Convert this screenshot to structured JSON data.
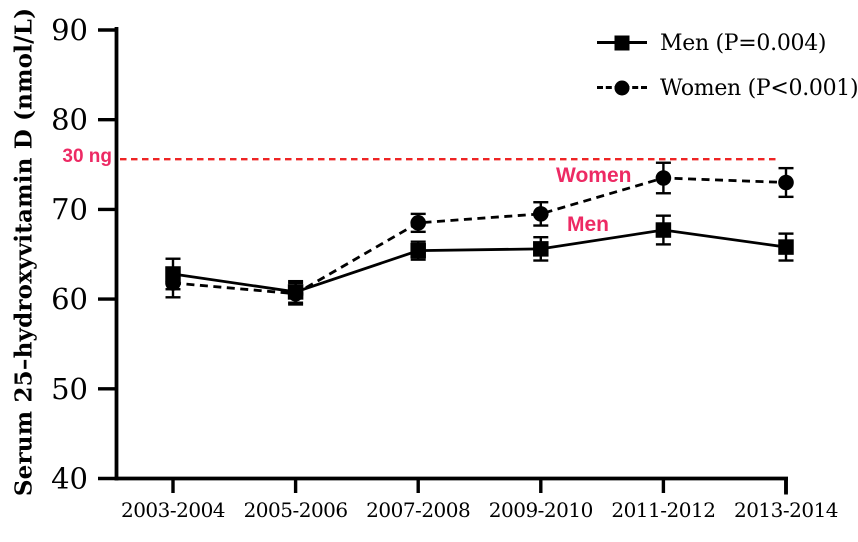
{
  "chart_data": {
    "type": "line",
    "title": "",
    "xlabel": "",
    "ylabel": "Serum 25–hydroxyvitamin D (nmol/L)",
    "categories": [
      "2003-2004",
      "2005-2006",
      "2007-2008",
      "2009-2010",
      "2011-2012",
      "2013-2014"
    ],
    "series": [
      {
        "name": "Men (P=0.004)",
        "annotation": "Men",
        "line": "solid",
        "marker": "square",
        "color": "#000000",
        "values": [
          62.8,
          60.8,
          65.4,
          65.6,
          67.7,
          65.8
        ],
        "errors": [
          1.7,
          1.2,
          1.0,
          1.3,
          1.6,
          1.5
        ]
      },
      {
        "name": "Women (P<0.001)",
        "annotation": "Women",
        "line": "dashed",
        "marker": "circle",
        "color": "#000000",
        "values": [
          61.8,
          60.6,
          68.5,
          69.5,
          73.5,
          73.0
        ],
        "errors": [
          1.6,
          1.2,
          1.0,
          1.3,
          1.7,
          1.6
        ]
      }
    ],
    "ylim": [
      40,
      90
    ],
    "y_ticks": [
      40,
      50,
      60,
      70,
      80,
      90
    ],
    "reference_line": {
      "value": 75.6,
      "label": "30 ng",
      "color": "#ee2424",
      "style": "dashed"
    },
    "annotation_color": "#ed2a64",
    "axis_color": "#000000",
    "legend_position": "top-right",
    "grid": false
  }
}
